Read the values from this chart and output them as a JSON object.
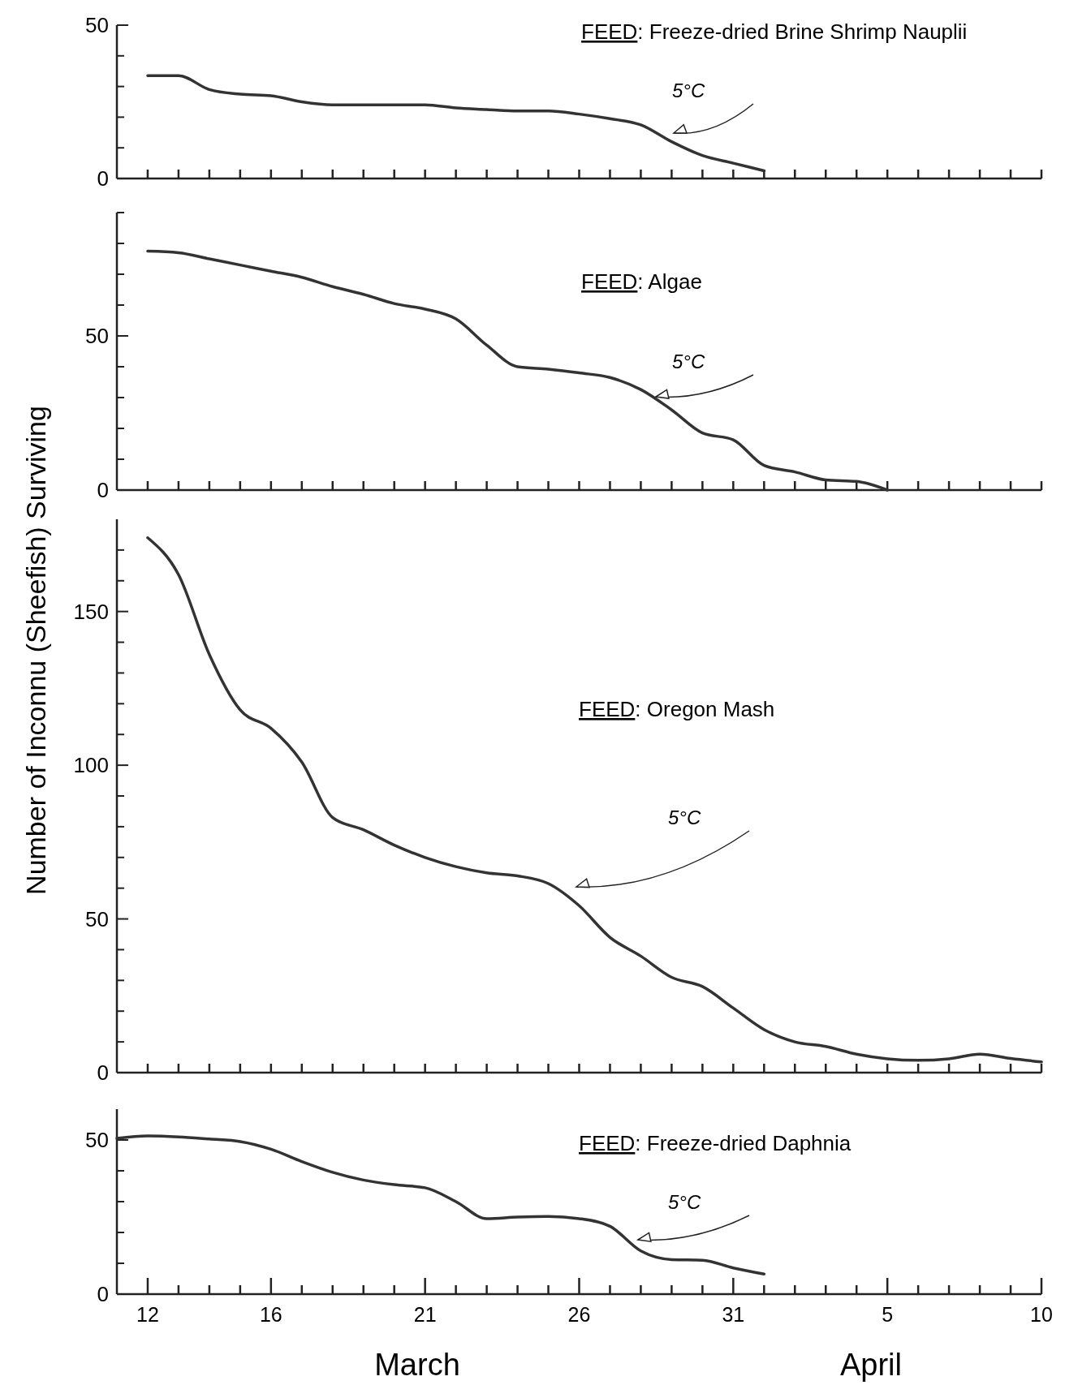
{
  "chart_data": [
    {
      "type": "line",
      "annotations": [
        "FEED: Freeze-dried Brine Shrimp Nauplii",
        "5°C"
      ],
      "x": [
        "--03-12",
        "--03-13",
        "--03-14",
        "--03-15",
        "--03-16",
        "--03-17",
        "--03-18",
        "--03-19",
        "--03-20",
        "--03-21",
        "--03-22",
        "--03-23",
        "--03-24",
        "--03-25",
        "--03-26",
        "--03-27",
        "--03-28",
        "--03-29",
        "--03-30",
        "--03-31",
        "--04-01"
      ],
      "series": [
        {
          "color": "#333333",
          "values": [
            33.5,
            33.5,
            29,
            27.5,
            27,
            25,
            24,
            24,
            24,
            24,
            23,
            22.5,
            22,
            22,
            21,
            19.5,
            17.5,
            12,
            7.5,
            5,
            2.5
          ]
        }
      ],
      "xlim": [
        "--03-11",
        "--04-10"
      ],
      "ylim": [
        0,
        50
      ],
      "xticks": [
        {
          "value": "--03-12",
          "label": null
        },
        {
          "value": "--03-13",
          "label": null
        },
        {
          "value": "--03-14",
          "label": null
        },
        {
          "value": "--03-15",
          "label": null
        },
        {
          "value": "--03-16",
          "label": null
        },
        {
          "value": "--03-17",
          "label": null
        },
        {
          "value": "--03-18",
          "label": null
        },
        {
          "value": "--03-19",
          "label": null
        },
        {
          "value": "--03-20",
          "label": null
        },
        {
          "value": "--03-21",
          "label": null
        },
        {
          "value": "--03-22",
          "label": null
        },
        {
          "value": "--03-23",
          "label": null
        },
        {
          "value": "--03-24",
          "label": null
        },
        {
          "value": "--03-25",
          "label": null
        },
        {
          "value": "--03-26",
          "label": null
        },
        {
          "value": "--03-27",
          "label": null
        },
        {
          "value": "--03-28",
          "label": null
        },
        {
          "value": "--03-29",
          "label": null
        },
        {
          "value": "--03-30",
          "label": null
        },
        {
          "value": "--03-31",
          "label": null
        },
        {
          "value": "--04-01",
          "label": null
        },
        {
          "value": "--04-02",
          "label": null
        },
        {
          "value": "--04-03",
          "label": null
        },
        {
          "value": "--04-04",
          "label": null
        },
        {
          "value": "--04-05",
          "label": null
        },
        {
          "value": "--04-06",
          "label": null
        },
        {
          "value": "--04-07",
          "label": null
        },
        {
          "value": "--04-08",
          "label": null
        },
        {
          "value": "--04-09",
          "label": null
        },
        {
          "value": "--04-10",
          "label": null
        }
      ],
      "yticks": [
        0,
        {
          "value": 10,
          "label": null
        },
        {
          "value": 20,
          "label": null
        },
        {
          "value": 30,
          "label": null
        },
        {
          "value": 40,
          "label": null
        },
        50
      ],
      "tick_labels": "y",
      "marker": "none",
      "line_style": "solid"
    },
    {
      "type": "line",
      "annotations": [
        "FEED: Algae",
        "5°C"
      ],
      "x": [
        "--03-12",
        "--03-13",
        "--03-14",
        "--03-15",
        "--03-16",
        "--03-17",
        "--03-18",
        "--03-19",
        "--03-20",
        "--03-21",
        "--03-22",
        "--03-23",
        "--03-24",
        "--03-25",
        "--03-26",
        "--03-27",
        "--03-28",
        "--03-29",
        "--03-30",
        "--03-31",
        "--04-01",
        "--04-02",
        "--04-03",
        "--04-04",
        "--04-05"
      ],
      "series": [
        {
          "color": "#333333",
          "values": [
            77.5,
            77,
            75,
            73,
            71,
            69,
            66,
            63.5,
            60.5,
            58.7,
            55.5,
            47,
            40,
            39.2,
            38,
            36.5,
            32.6,
            26,
            18.5,
            16.3,
            8,
            5.9,
            3.3,
            2.8,
            0
          ]
        }
      ],
      "xlim": [
        "--03-11",
        "--04-10"
      ],
      "ylim": [
        0,
        90
      ],
      "xticks": [
        {
          "value": "--03-12",
          "label": null
        },
        {
          "value": "--03-13",
          "label": null
        },
        {
          "value": "--03-14",
          "label": null
        },
        {
          "value": "--03-15",
          "label": null
        },
        {
          "value": "--03-16",
          "label": null
        },
        {
          "value": "--03-17",
          "label": null
        },
        {
          "value": "--03-18",
          "label": null
        },
        {
          "value": "--03-19",
          "label": null
        },
        {
          "value": "--03-20",
          "label": null
        },
        {
          "value": "--03-21",
          "label": null
        },
        {
          "value": "--03-22",
          "label": null
        },
        {
          "value": "--03-23",
          "label": null
        },
        {
          "value": "--03-24",
          "label": null
        },
        {
          "value": "--03-25",
          "label": null
        },
        {
          "value": "--03-26",
          "label": null
        },
        {
          "value": "--03-27",
          "label": null
        },
        {
          "value": "--03-28",
          "label": null
        },
        {
          "value": "--03-29",
          "label": null
        },
        {
          "value": "--03-30",
          "label": null
        },
        {
          "value": "--03-31",
          "label": null
        },
        {
          "value": "--04-01",
          "label": null
        },
        {
          "value": "--04-02",
          "label": null
        },
        {
          "value": "--04-03",
          "label": null
        },
        {
          "value": "--04-04",
          "label": null
        },
        {
          "value": "--04-05",
          "label": null
        },
        {
          "value": "--04-06",
          "label": null
        },
        {
          "value": "--04-07",
          "label": null
        },
        {
          "value": "--04-08",
          "label": null
        },
        {
          "value": "--04-09",
          "label": null
        },
        {
          "value": "--04-10",
          "label": null
        }
      ],
      "yticks": [
        0,
        {
          "value": 10,
          "label": null
        },
        {
          "value": 20,
          "label": null
        },
        {
          "value": 30,
          "label": null
        },
        {
          "value": 40,
          "label": null
        },
        50,
        {
          "value": 60,
          "label": null
        },
        {
          "value": 70,
          "label": null
        },
        {
          "value": 80,
          "label": null
        },
        {
          "value": 90,
          "label": null
        }
      ],
      "tick_labels": "y",
      "marker": "none",
      "line_style": "solid"
    },
    {
      "type": "line",
      "ylabel": "Number of Inconnu (Sheefish) Surviving",
      "annotations": [
        "FEED: Oregon Mash",
        "5°C"
      ],
      "x": [
        "--03-12",
        "--03-13",
        "--03-14",
        "--03-15",
        "--03-16",
        "--03-17",
        "--03-18",
        "--03-19",
        "--03-20",
        "--03-21",
        "--03-22",
        "--03-23",
        "--03-24",
        "--03-25",
        "--03-26",
        "--03-27",
        "--03-28",
        "--03-29",
        "--03-30",
        "--03-31",
        "--04-01",
        "--04-02",
        "--04-03",
        "--04-04",
        "--04-05",
        "--04-06",
        "--04-07",
        "--04-08",
        "--04-09",
        "--04-10"
      ],
      "series": [
        {
          "color": "#333333",
          "values": [
            174,
            162,
            136,
            118,
            112,
            101,
            83,
            79,
            74,
            70,
            67,
            65,
            64,
            61.5,
            54.3,
            44,
            37.9,
            31,
            28,
            21,
            14,
            10,
            8.5,
            6,
            4.5,
            4,
            4.5,
            6,
            4.6,
            3.5
          ]
        }
      ],
      "xlim": [
        "--03-11",
        "--04-10"
      ],
      "ylim": [
        0,
        180
      ],
      "xticks": [
        {
          "value": "--03-12",
          "label": null
        },
        {
          "value": "--03-13",
          "label": null
        },
        {
          "value": "--03-14",
          "label": null
        },
        {
          "value": "--03-15",
          "label": null
        },
        {
          "value": "--03-16",
          "label": null
        },
        {
          "value": "--03-17",
          "label": null
        },
        {
          "value": "--03-18",
          "label": null
        },
        {
          "value": "--03-19",
          "label": null
        },
        {
          "value": "--03-20",
          "label": null
        },
        {
          "value": "--03-21",
          "label": null
        },
        {
          "value": "--03-22",
          "label": null
        },
        {
          "value": "--03-23",
          "label": null
        },
        {
          "value": "--03-24",
          "label": null
        },
        {
          "value": "--03-25",
          "label": null
        },
        {
          "value": "--03-26",
          "label": null
        },
        {
          "value": "--03-27",
          "label": null
        },
        {
          "value": "--03-28",
          "label": null
        },
        {
          "value": "--03-29",
          "label": null
        },
        {
          "value": "--03-30",
          "label": null
        },
        {
          "value": "--03-31",
          "label": null
        },
        {
          "value": "--04-01",
          "label": null
        },
        {
          "value": "--04-02",
          "label": null
        },
        {
          "value": "--04-03",
          "label": null
        },
        {
          "value": "--04-04",
          "label": null
        },
        {
          "value": "--04-05",
          "label": null
        },
        {
          "value": "--04-06",
          "label": null
        },
        {
          "value": "--04-07",
          "label": null
        },
        {
          "value": "--04-08",
          "label": null
        },
        {
          "value": "--04-09",
          "label": null
        },
        {
          "value": "--04-10",
          "label": null
        }
      ],
      "yticks": [
        0,
        {
          "value": 10,
          "label": null
        },
        {
          "value": 20,
          "label": null
        },
        {
          "value": 30,
          "label": null
        },
        {
          "value": 40,
          "label": null
        },
        50,
        {
          "value": 60,
          "label": null
        },
        {
          "value": 70,
          "label": null
        },
        {
          "value": 80,
          "label": null
        },
        {
          "value": 90,
          "label": null
        },
        100,
        {
          "value": 110,
          "label": null
        },
        {
          "value": 120,
          "label": null
        },
        {
          "value": 130,
          "label": null
        },
        {
          "value": 140,
          "label": null
        },
        150,
        {
          "value": 160,
          "label": null
        },
        {
          "value": 170,
          "label": null
        }
      ],
      "tick_labels": "y",
      "marker": "none",
      "line_style": "solid"
    },
    {
      "type": "line",
      "xlabel": "March",
      "annotations": [
        "FEED: Freeze-dried Daphnia",
        "5°C",
        "April"
      ],
      "x": [
        "--03-11",
        "--03-12",
        "--03-13",
        "--03-14",
        "--03-15",
        "--03-16",
        "--03-17",
        "--03-18",
        "--03-19",
        "--03-20",
        "--03-21",
        "--03-22",
        "--03-23",
        "--03-24",
        "--03-25",
        "--03-26",
        "--03-27",
        "--03-28",
        "--03-29",
        "--03-30",
        "--03-31",
        "--04-01"
      ],
      "series": [
        {
          "color": "#333333",
          "values": [
            50.5,
            51.3,
            51,
            50.3,
            49.5,
            47,
            43,
            39.5,
            37,
            35.5,
            34.5,
            30,
            24.5,
            25,
            25.2,
            24.5,
            22,
            14,
            11.2,
            11,
            8.5,
            6.5
          ]
        }
      ],
      "xlim": [
        "--03-11",
        "--04-10"
      ],
      "ylim": [
        0,
        60
      ],
      "xticks": [
        {
          "value": "--03-12",
          "label": "12"
        },
        {
          "value": "--03-13",
          "label": null
        },
        {
          "value": "--03-14",
          "label": null
        },
        {
          "value": "--03-15",
          "label": null
        },
        {
          "value": "--03-16",
          "label": "16"
        },
        {
          "value": "--03-17",
          "label": null
        },
        {
          "value": "--03-18",
          "label": null
        },
        {
          "value": "--03-19",
          "label": null
        },
        {
          "value": "--03-20",
          "label": null
        },
        {
          "value": "--03-21",
          "label": "21"
        },
        {
          "value": "--03-22",
          "label": null
        },
        {
          "value": "--03-23",
          "label": null
        },
        {
          "value": "--03-24",
          "label": null
        },
        {
          "value": "--03-25",
          "label": null
        },
        {
          "value": "--03-26",
          "label": "26"
        },
        {
          "value": "--03-27",
          "label": null
        },
        {
          "value": "--03-28",
          "label": null
        },
        {
          "value": "--03-29",
          "label": null
        },
        {
          "value": "--03-30",
          "label": null
        },
        {
          "value": "--03-31",
          "label": "31"
        },
        {
          "value": "--04-01",
          "label": null
        },
        {
          "value": "--04-02",
          "label": null
        },
        {
          "value": "--04-03",
          "label": null
        },
        {
          "value": "--04-04",
          "label": null
        },
        {
          "value": "--04-05",
          "label": "5"
        },
        {
          "value": "--04-06",
          "label": null
        },
        {
          "value": "--04-07",
          "label": null
        },
        {
          "value": "--04-08",
          "label": null
        },
        {
          "value": "--04-09",
          "label": null
        },
        {
          "value": "--04-10",
          "label": "10"
        }
      ],
      "yticks": [
        0,
        {
          "value": 10,
          "label": null
        },
        {
          "value": 20,
          "label": null
        },
        {
          "value": 30,
          "label": null
        },
        {
          "value": 40,
          "label": null
        },
        50
      ],
      "marker": "none",
      "line_style": "solid"
    }
  ]
}
